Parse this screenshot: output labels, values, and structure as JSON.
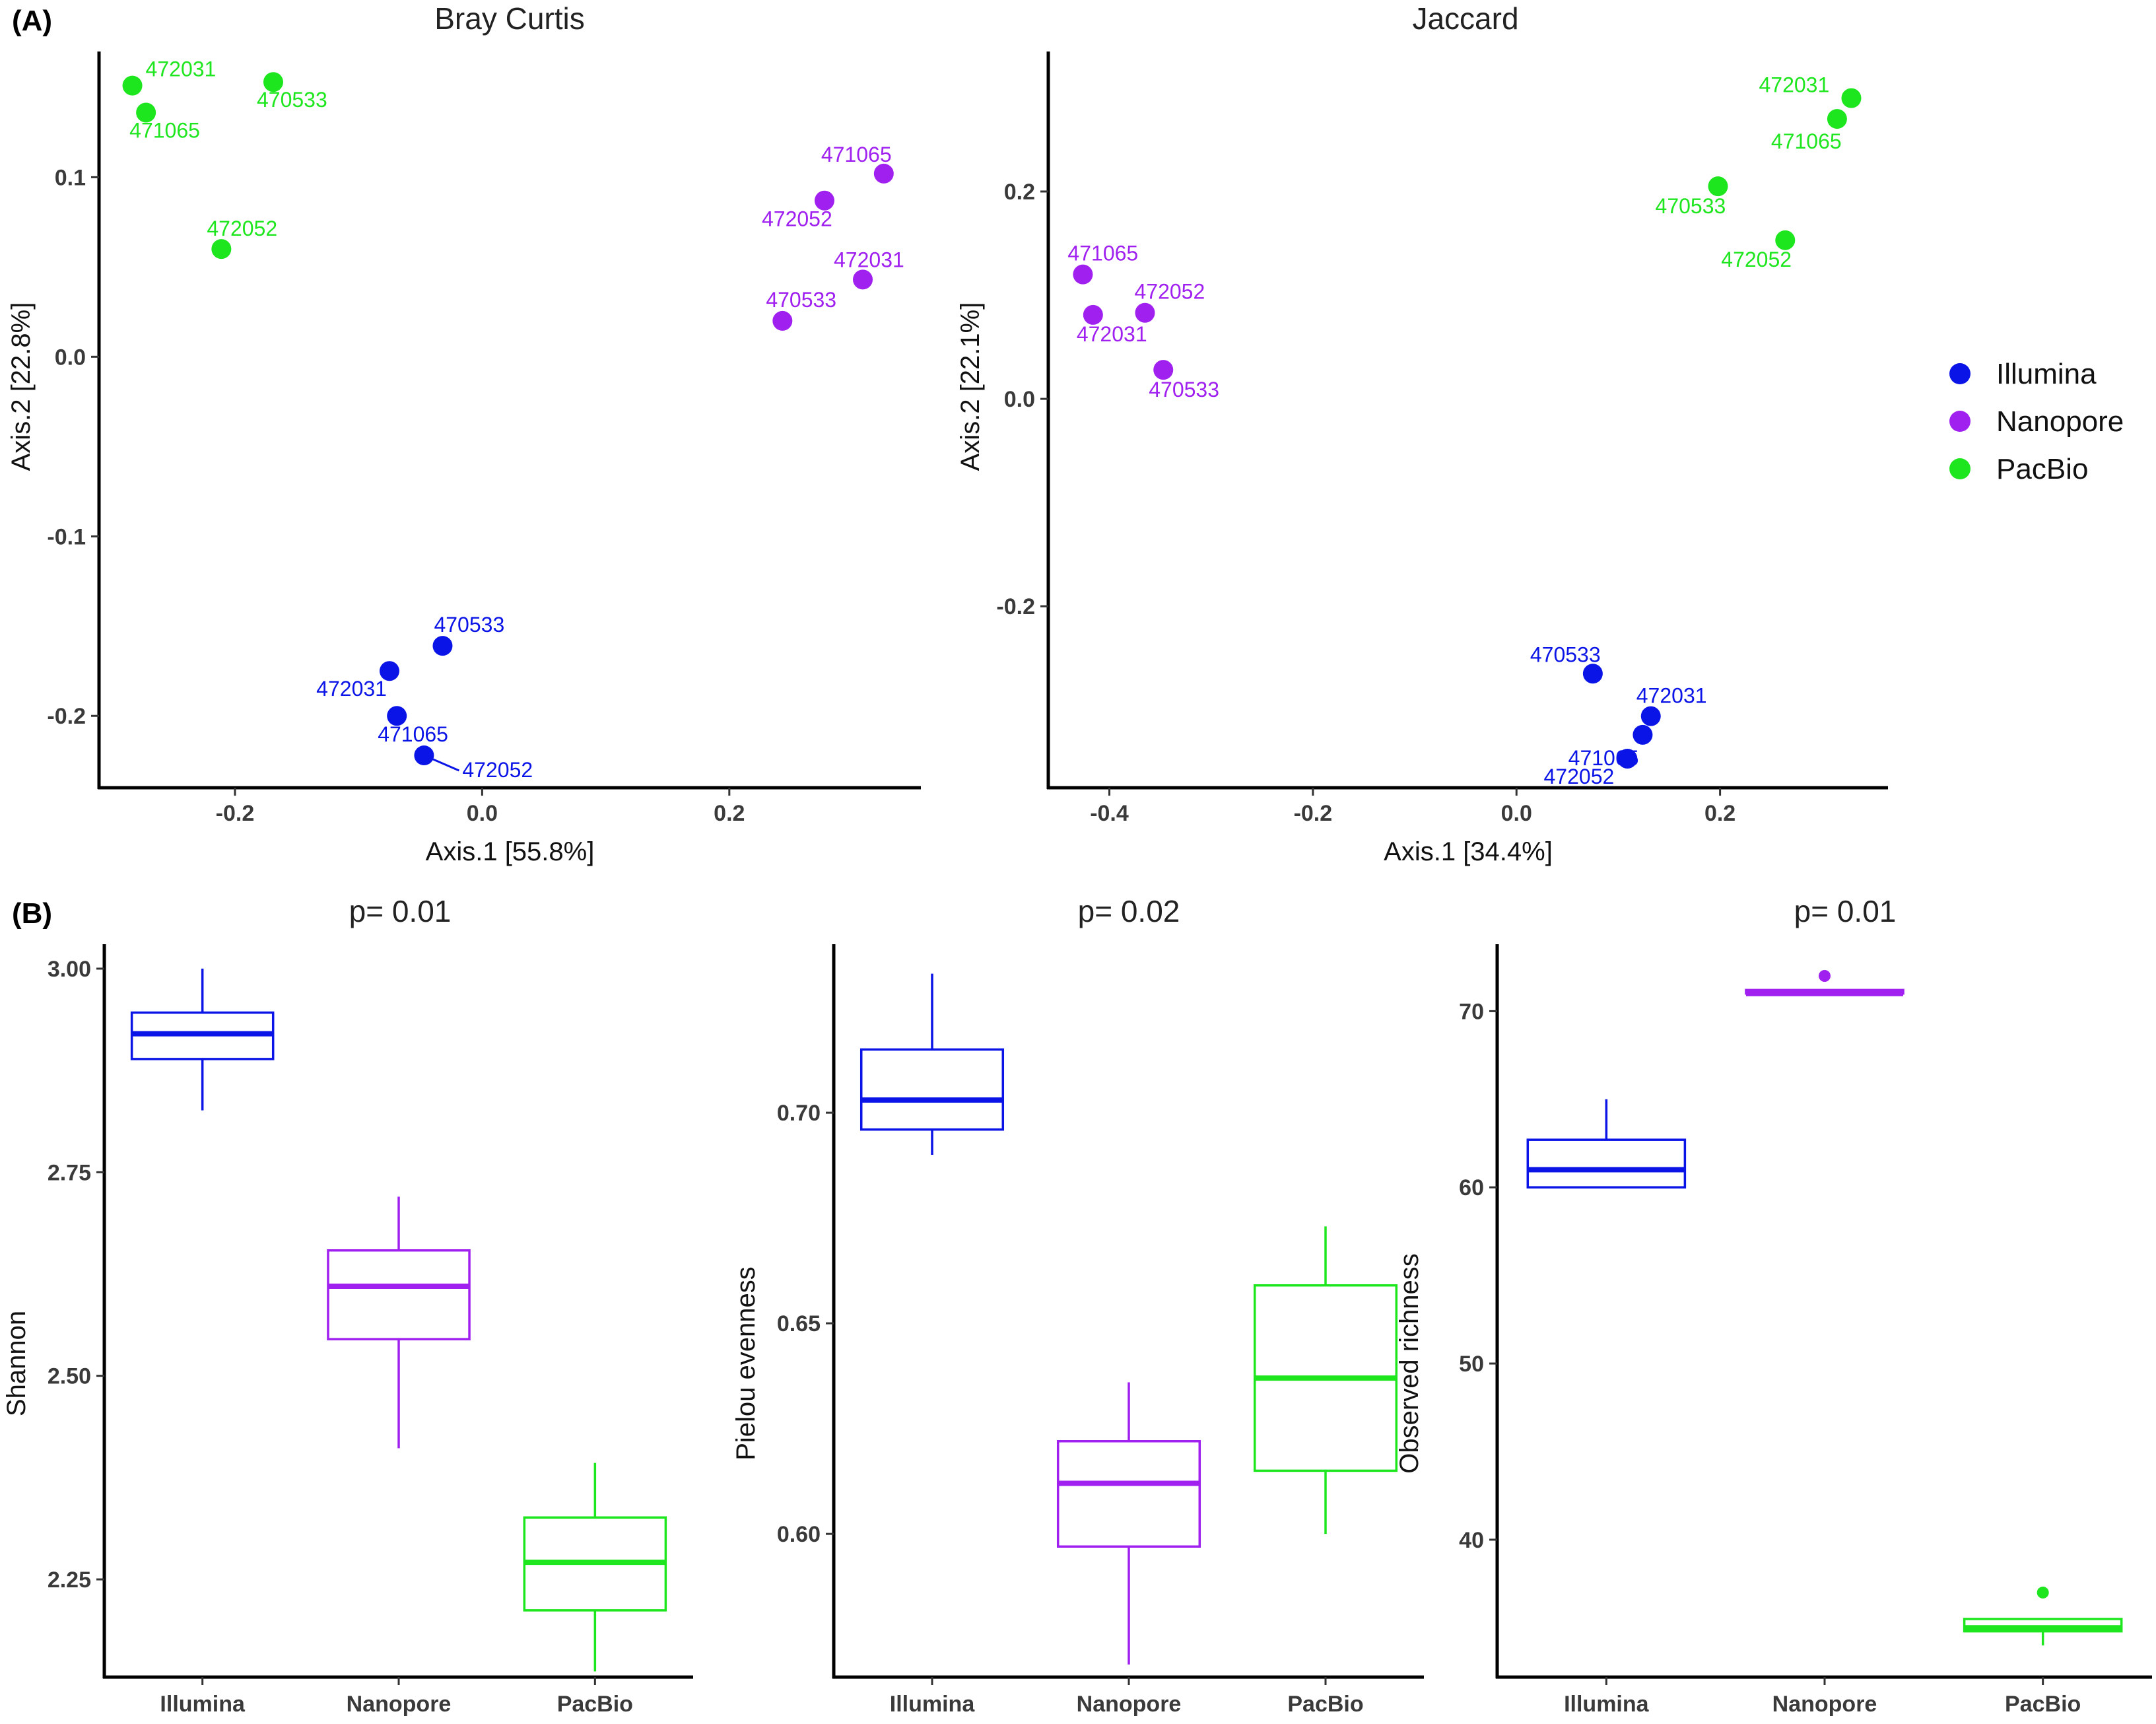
{
  "panel_labels": {
    "a": "(A)",
    "b": "(B)"
  },
  "colors": {
    "Illumina": "#0a14e6",
    "Nanopore": "#a020f0",
    "PacBio": "#1ee61e"
  },
  "legend": {
    "entries": [
      "Illumina",
      "Nanopore",
      "PacBio"
    ]
  },
  "chart_data": [
    {
      "type": "scatter",
      "title": "Bray Curtis",
      "xlabel": "Axis.1   [55.8%]",
      "ylabel": "Axis.2   [22.8%]",
      "xlim": [
        -0.31,
        0.355
      ],
      "ylim": [
        -0.24,
        0.17
      ],
      "xticks": [
        -0.2,
        0.0,
        0.2
      ],
      "xtick_labels": [
        "-0.2",
        "0.0",
        "0.2"
      ],
      "yticks": [
        -0.2,
        -0.1,
        0.0,
        0.1
      ],
      "ytick_labels": [
        "-0.2",
        "-0.1",
        "0.0",
        "0.1"
      ],
      "series": [
        {
          "name": "Illumina",
          "points": [
            {
              "label": "470533",
              "x": -0.032,
              "y": -0.161
            },
            {
              "label": "472031",
              "x": -0.075,
              "y": -0.175
            },
            {
              "label": "471065",
              "x": -0.069,
              "y": -0.2
            },
            {
              "label": "472052",
              "x": -0.047,
              "y": -0.222
            }
          ]
        },
        {
          "name": "Nanopore",
          "points": [
            {
              "label": "471065",
              "x": 0.325,
              "y": 0.102
            },
            {
              "label": "472052",
              "x": 0.277,
              "y": 0.087
            },
            {
              "label": "472031",
              "x": 0.308,
              "y": 0.043
            },
            {
              "label": "470533",
              "x": 0.243,
              "y": 0.02
            }
          ]
        },
        {
          "name": "PacBio",
          "points": [
            {
              "label": "472031",
              "x": -0.283,
              "y": 0.151
            },
            {
              "label": "470533",
              "x": -0.169,
              "y": 0.153
            },
            {
              "label": "471065",
              "x": -0.272,
              "y": 0.136
            },
            {
              "label": "472052",
              "x": -0.211,
              "y": 0.06
            }
          ]
        }
      ]
    },
    {
      "type": "scatter",
      "title": "Jaccard",
      "xlabel": "Axis.1   [34.4%]",
      "ylabel": "Axis.2   [22.1%]",
      "xlim": [
        -0.46,
        0.365
      ],
      "ylim": [
        -0.375,
        0.335
      ],
      "xticks": [
        -0.4,
        -0.2,
        0.0,
        0.2
      ],
      "xtick_labels": [
        "-0.4",
        "-0.2",
        "0.0",
        "0.2"
      ],
      "yticks": [
        -0.2,
        0.0,
        0.2
      ],
      "ytick_labels": [
        "-0.2",
        "0.0",
        "0.2"
      ],
      "series": [
        {
          "name": "Illumina",
          "points": [
            {
              "label": "470533",
              "x": 0.075,
              "y": -0.265
            },
            {
              "label": "472031",
              "x": 0.132,
              "y": -0.306
            },
            {
              "label": "471065",
              "x": 0.124,
              "y": -0.324
            },
            {
              "label": "472052",
              "x": 0.109,
              "y": -0.347
            }
          ]
        },
        {
          "name": "Nanopore",
          "points": [
            {
              "label": "471065",
              "x": -0.426,
              "y": 0.12
            },
            {
              "label": "472052",
              "x": -0.365,
              "y": 0.083
            },
            {
              "label": "472031",
              "x": -0.416,
              "y": 0.081
            },
            {
              "label": "470533",
              "x": -0.347,
              "y": 0.028
            }
          ]
        },
        {
          "name": "PacBio",
          "points": [
            {
              "label": "472031",
              "x": 0.329,
              "y": 0.29
            },
            {
              "label": "471065",
              "x": 0.315,
              "y": 0.27
            },
            {
              "label": "470533",
              "x": 0.198,
              "y": 0.205
            },
            {
              "label": "472052",
              "x": 0.264,
              "y": 0.153
            }
          ]
        }
      ]
    },
    {
      "type": "box",
      "title": "p= 0.01",
      "ylabel": "Shannon",
      "categories": [
        "Illumina",
        "Nanopore",
        "PacBio"
      ],
      "ylim": [
        2.13,
        3.03
      ],
      "yticks": [
        2.25,
        2.5,
        2.75,
        3.0
      ],
      "ytick_labels": [
        "2.25",
        "2.50",
        "2.75",
        "3.00"
      ],
      "boxes": [
        {
          "name": "Illumina",
          "min": 2.826,
          "q1": 2.889,
          "median": 2.92,
          "q3": 2.946,
          "max": 3.0,
          "outliers": []
        },
        {
          "name": "Nanopore",
          "min": 2.411,
          "q1": 2.545,
          "median": 2.61,
          "q3": 2.654,
          "max": 2.72,
          "outliers": []
        },
        {
          "name": "PacBio",
          "min": 2.137,
          "q1": 2.212,
          "median": 2.271,
          "q3": 2.326,
          "max": 2.393,
          "outliers": []
        }
      ]
    },
    {
      "type": "box",
      "title": "p= 0.02",
      "ylabel": "Pielou evenness",
      "categories": [
        "Illumina",
        "Nanopore",
        "PacBio"
      ],
      "ylim": [
        0.566,
        0.74
      ],
      "yticks": [
        0.6,
        0.65,
        0.7
      ],
      "ytick_labels": [
        "0.60",
        "0.65",
        "0.70"
      ],
      "boxes": [
        {
          "name": "Illumina",
          "min": 0.69,
          "q1": 0.696,
          "median": 0.703,
          "q3": 0.715,
          "max": 0.733,
          "outliers": []
        },
        {
          "name": "Nanopore",
          "min": 0.569,
          "q1": 0.597,
          "median": 0.612,
          "q3": 0.622,
          "max": 0.636,
          "outliers": []
        },
        {
          "name": "PacBio",
          "min": 0.6,
          "q1": 0.615,
          "median": 0.637,
          "q3": 0.659,
          "max": 0.673,
          "outliers": []
        }
      ]
    },
    {
      "type": "box",
      "title": "p= 0.01",
      "ylabel": "Observed richness",
      "categories": [
        "Illumina",
        "Nanopore",
        "PacBio"
      ],
      "ylim": [
        32.2,
        73.8
      ],
      "yticks": [
        40,
        50,
        60,
        70
      ],
      "ytick_labels": [
        "40",
        "50",
        "60",
        "70"
      ],
      "boxes": [
        {
          "name": "Illumina",
          "min": 60,
          "q1": 60,
          "median": 61,
          "q3": 62.7,
          "max": 65,
          "outliers": []
        },
        {
          "name": "Nanopore",
          "min": 71,
          "q1": 71,
          "median": 71,
          "q3": 71.2,
          "max": 71.2,
          "outliers": [
            72
          ]
        },
        {
          "name": "PacBio",
          "min": 34,
          "q1": 34.8,
          "median": 35,
          "q3": 35.5,
          "max": 35.5,
          "outliers": [
            37
          ]
        }
      ]
    }
  ]
}
